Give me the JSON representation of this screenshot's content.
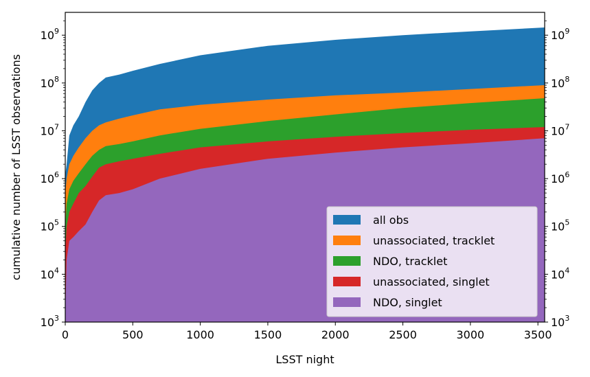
{
  "chart_data": {
    "type": "area",
    "xlabel": "LSST night",
    "ylabel": "cumulative number of LSST observations",
    "xlim": [
      0,
      3550
    ],
    "ylim": [
      1000,
      3000000000
    ],
    "yscale": "log",
    "right_axis_mirror": true,
    "grid": false,
    "legend_position": "bottom-right",
    "x_ticks": [
      0,
      500,
      1000,
      1500,
      2000,
      2500,
      3000,
      3500
    ],
    "y_ticks": [
      {
        "value": 1000,
        "label_base": "10",
        "label_exp": "3"
      },
      {
        "value": 10000,
        "label_base": "10",
        "label_exp": "4"
      },
      {
        "value": 100000,
        "label_base": "10",
        "label_exp": "5"
      },
      {
        "value": 1000000,
        "label_base": "10",
        "label_exp": "6"
      },
      {
        "value": 10000000,
        "label_base": "10",
        "label_exp": "7"
      },
      {
        "value": 100000000,
        "label_base": "10",
        "label_exp": "8"
      },
      {
        "value": 1000000000,
        "label_base": "10",
        "label_exp": "9"
      }
    ],
    "x": [
      0,
      10,
      30,
      60,
      100,
      150,
      200,
      250,
      300,
      400,
      500,
      700,
      1000,
      1500,
      2000,
      2500,
      3000,
      3550
    ],
    "series": [
      {
        "name": "all obs",
        "color": "#1f77b4",
        "values": [
          1200000,
          2000000,
          8000000,
          13000000,
          20000000,
          40000000,
          70000000,
          100000000,
          130000000,
          150000000,
          180000000,
          250000000,
          380000000,
          600000000,
          800000000,
          1000000000,
          1200000000,
          1450000000
        ]
      },
      {
        "name": "unassociated, tracklet",
        "color": "#ff7f0e",
        "values": [
          500000,
          1000000,
          2000000,
          3000000,
          4500000,
          7000000,
          10000000,
          13000000,
          15000000,
          18000000,
          21000000,
          28000000,
          35000000,
          45000000,
          55000000,
          63000000,
          75000000,
          90000000
        ]
      },
      {
        "name": "NDO, tracklet",
        "color": "#2ca02c",
        "values": [
          100000,
          300000,
          600000,
          900000,
          1300000,
          2000000,
          3000000,
          4000000,
          4800000,
          5300000,
          6000000,
          8000000,
          11000000,
          16000000,
          22000000,
          30000000,
          38000000,
          48000000
        ]
      },
      {
        "name": "unassociated, singlet",
        "color": "#d62728",
        "values": [
          30000,
          100000,
          200000,
          300000,
          500000,
          700000,
          1100000,
          1700000,
          2000000,
          2300000,
          2600000,
          3300000,
          4500000,
          6000000,
          7500000,
          9000000,
          10500000,
          12000000
        ]
      },
      {
        "name": "NDO, singlet",
        "color": "#9467bd",
        "values": [
          1500,
          20000,
          50000,
          60000,
          80000,
          110000,
          200000,
          350000,
          450000,
          500000,
          600000,
          1000000,
          1600000,
          2600000,
          3500000,
          4500000,
          5500000,
          7000000
        ]
      }
    ]
  }
}
